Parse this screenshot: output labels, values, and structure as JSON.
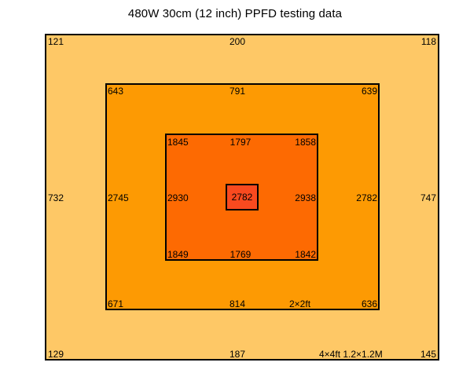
{
  "title": "480W 30cm (12 inch) PPFD testing data",
  "colors": {
    "outer": "#fec866",
    "middle": "#fd9a03",
    "inner": "#fd6a02",
    "center": "#f94a1f",
    "border": "#000000"
  },
  "outer": {
    "top_left": "121",
    "top_mid": "200",
    "top_right": "118",
    "mid_left": "732",
    "mid_right": "747",
    "bottom_left": "129",
    "bottom_mid": "187",
    "bottom_right": "145",
    "size_label": "4×4ft  1.2×1.2M"
  },
  "middle": {
    "top_left": "643",
    "top_mid": "791",
    "top_right": "639",
    "mid_left": "2745",
    "mid_right": "2782",
    "bottom_left": "671",
    "bottom_mid": "814",
    "bottom_right": "636",
    "size_label": "2×2ft"
  },
  "inner": {
    "top_left": "1845",
    "top_mid": "1797",
    "top_right": "1858",
    "mid_left": "2930",
    "mid_right": "2938",
    "bottom_left": "1849",
    "bottom_mid": "1769",
    "bottom_right": "1842"
  },
  "center": {
    "value": "2782"
  }
}
